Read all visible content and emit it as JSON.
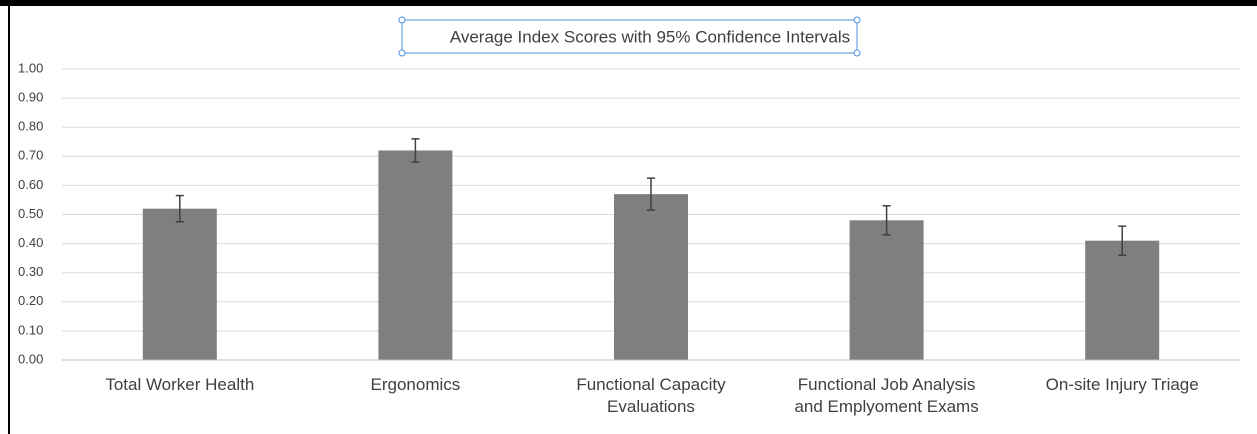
{
  "chart_data": {
    "type": "bar",
    "title": "Average Index Scores with 95% Confidence Intervals",
    "categories": [
      "Total Worker Health",
      "Ergonomics",
      "Functional Capacity Evaluations",
      "Functional Job Analysis and Emplyoment Exams",
      "On-site Injury Triage"
    ],
    "values": [
      0.52,
      0.72,
      0.57,
      0.48,
      0.41
    ],
    "errors": [
      0.045,
      0.04,
      0.055,
      0.05,
      0.05
    ],
    "color": "#7f7f7f",
    "error_color": "#404040",
    "ylim": [
      0,
      1
    ],
    "yticks": [
      {
        "value": 0,
        "label": "0.00"
      },
      {
        "value": 0.1,
        "label": "0.10"
      },
      {
        "value": 0.2,
        "label": "0.20"
      },
      {
        "value": 0.3,
        "label": "0.30"
      },
      {
        "value": 0.4,
        "label": "0.40"
      },
      {
        "value": 0.5,
        "label": "0.50"
      },
      {
        "value": 0.6,
        "label": "0.60"
      },
      {
        "value": 0.7,
        "label": "0.70"
      },
      {
        "value": 0.8,
        "label": "0.80"
      },
      {
        "value": 0.9,
        "label": "0.90"
      },
      {
        "value": 1,
        "label": "1.00"
      }
    ],
    "grid": true
  }
}
